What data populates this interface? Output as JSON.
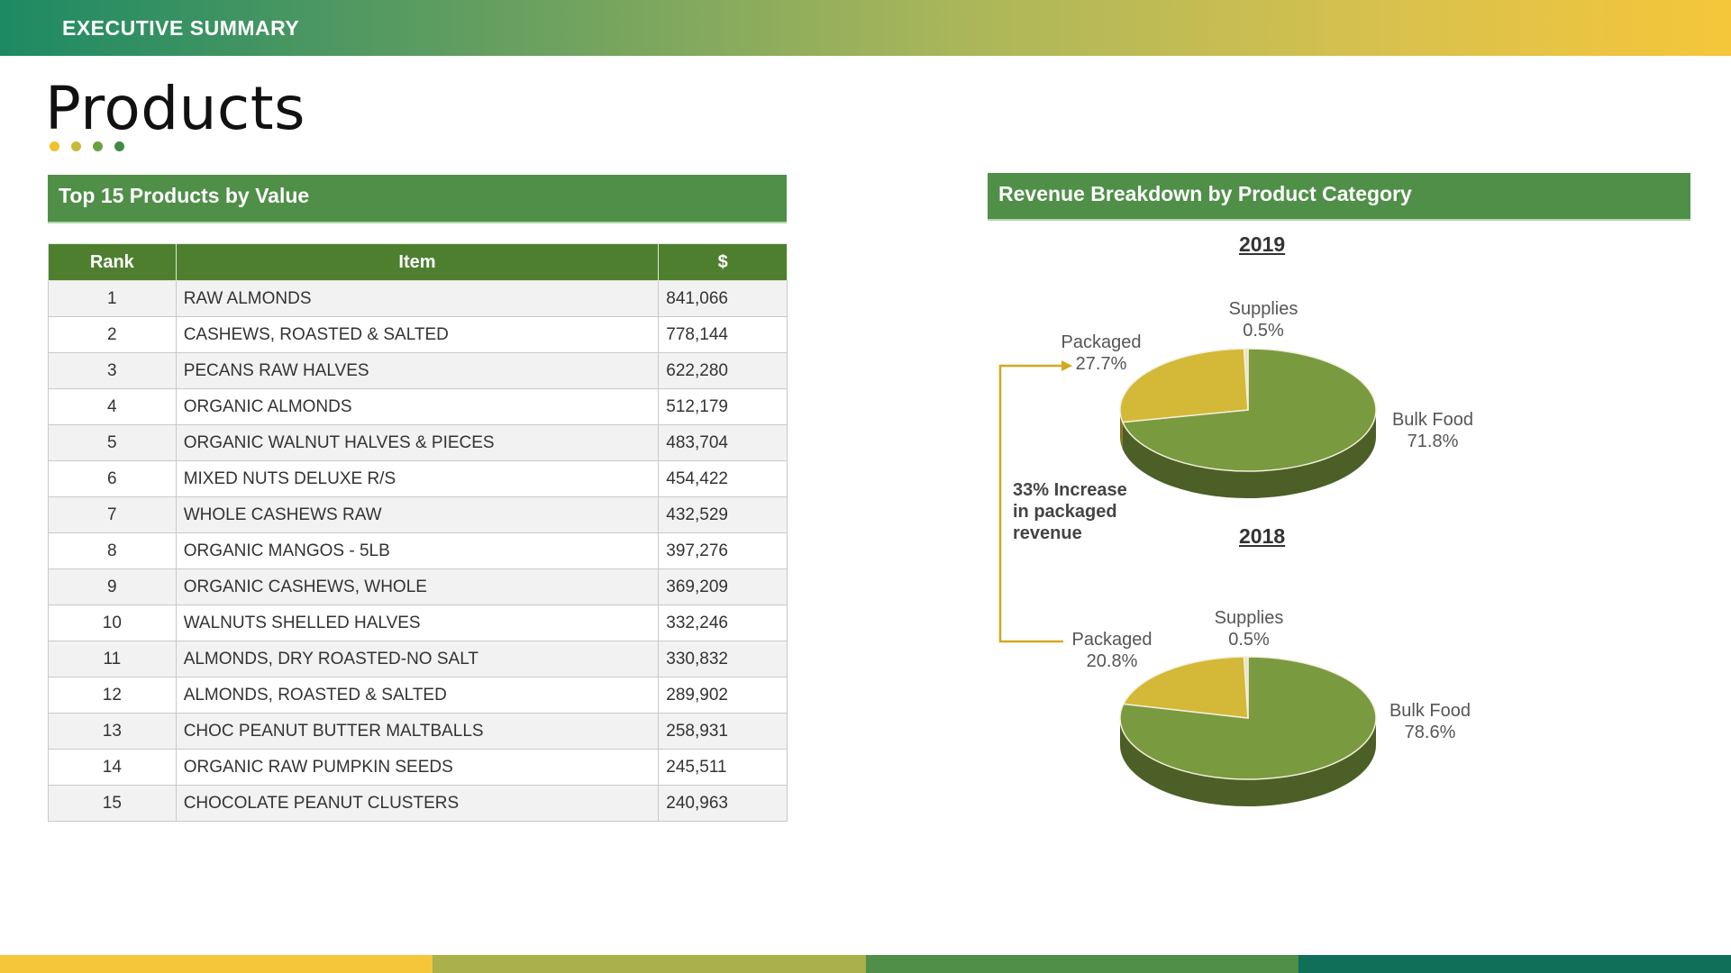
{
  "header": {
    "banner_title": "EXECUTIVE SUMMARY",
    "page_title": "Products"
  },
  "colors": {
    "dots": [
      "#f2c12e",
      "#c9b93a",
      "#6aa042",
      "#3f8a44"
    ],
    "strips": [
      "#f5c63a",
      "#a8b14a",
      "#4f8f48",
      "#0f6f58"
    ],
    "bulk_food": "#7a9a3f",
    "packaged": "#d4b838",
    "supplies": "#e9e3c6",
    "note_line": "#d4a820"
  },
  "table_section": {
    "title": "Top 15 Products by Value",
    "columns": [
      "Rank",
      "Item",
      "$"
    ],
    "rows": [
      {
        "rank": "1",
        "item": "RAW ALMONDS",
        "value": "841,066"
      },
      {
        "rank": "2",
        "item": "CASHEWS, ROASTED & SALTED",
        "value": "778,144"
      },
      {
        "rank": "3",
        "item": "PECANS RAW HALVES",
        "value": "622,280"
      },
      {
        "rank": "4",
        "item": "ORGANIC ALMONDS",
        "value": "512,179"
      },
      {
        "rank": "5",
        "item": "ORGANIC WALNUT HALVES & PIECES",
        "value": "483,704"
      },
      {
        "rank": "6",
        "item": "MIXED NUTS DELUXE R/S",
        "value": "454,422"
      },
      {
        "rank": "7",
        "item": "WHOLE CASHEWS RAW",
        "value": "432,529"
      },
      {
        "rank": "8",
        "item": "ORGANIC MANGOS - 5LB",
        "value": "397,276"
      },
      {
        "rank": "9",
        "item": "ORGANIC CASHEWS, WHOLE",
        "value": "369,209"
      },
      {
        "rank": "10",
        "item": "WALNUTS SHELLED HALVES",
        "value": "332,246"
      },
      {
        "rank": "11",
        "item": "ALMONDS, DRY ROASTED-NO SALT",
        "value": "330,832"
      },
      {
        "rank": "12",
        "item": "ALMONDS, ROASTED & SALTED",
        "value": "289,902"
      },
      {
        "rank": "13",
        "item": "CHOC PEANUT BUTTER MALTBALLS",
        "value": "258,931"
      },
      {
        "rank": "14",
        "item": "ORGANIC RAW PUMPKIN SEEDS",
        "value": "245,511"
      },
      {
        "rank": "15",
        "item": "CHOCOLATE PEANUT CLUSTERS",
        "value": "240,963"
      }
    ]
  },
  "chart_section": {
    "title": "Revenue Breakdown by Product Category",
    "note": "33% Increase in packaged revenue"
  },
  "chart_data": [
    {
      "type": "pie",
      "title": "2019",
      "categories": [
        "Bulk Food",
        "Packaged",
        "Supplies"
      ],
      "values": [
        71.8,
        27.7,
        0.5
      ],
      "labels": [
        "71.8%",
        "27.7%",
        "0.5%"
      ]
    },
    {
      "type": "pie",
      "title": "2018",
      "categories": [
        "Bulk Food",
        "Packaged",
        "Supplies"
      ],
      "values": [
        78.6,
        20.8,
        0.5
      ],
      "labels": [
        "78.6%",
        "20.8%",
        "0.5%"
      ]
    }
  ]
}
